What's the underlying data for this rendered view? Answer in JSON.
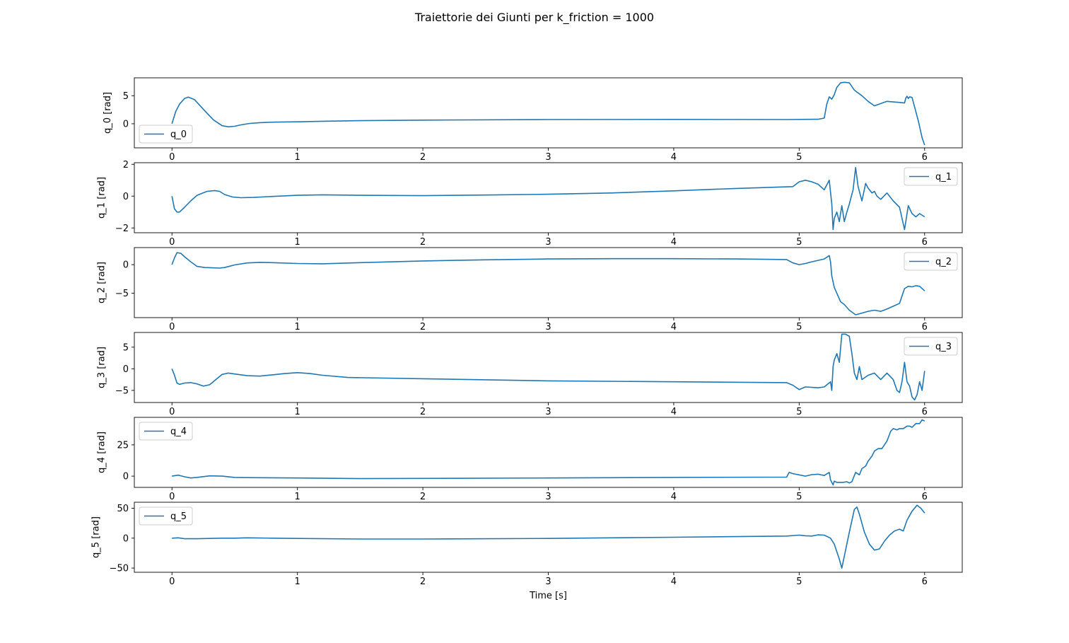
{
  "chart_data": {
    "type": "line",
    "title": "Traiettorie dei Giunti per k_friction = 1000",
    "xlabel": "Time [s]",
    "xlim": [
      -0.3,
      6.3
    ],
    "xticks": [
      0,
      1,
      2,
      3,
      4,
      5,
      6
    ],
    "line_color": "#1f77b4",
    "subplots": [
      {
        "name": "q_0",
        "ylabel": "q_0 [rad]",
        "ylim": [
          -4.3,
          8.2
        ],
        "yticks": [
          0,
          5
        ],
        "legend": "lower-left",
        "x": [
          0,
          0.03,
          0.06,
          0.1,
          0.13,
          0.18,
          0.25,
          0.33,
          0.4,
          0.45,
          0.5,
          0.55,
          0.62,
          0.7,
          0.8,
          0.9,
          1.0,
          1.2,
          1.5,
          2.0,
          3.0,
          4.0,
          4.9,
          5.15,
          5.2,
          5.22,
          5.24,
          5.26,
          5.28,
          5.3,
          5.33,
          5.36,
          5.4,
          5.44,
          5.47,
          5.5,
          5.55,
          5.6,
          5.65,
          5.7,
          5.75,
          5.8,
          5.84,
          5.85,
          5.86,
          5.87,
          5.88,
          5.9,
          5.92,
          5.95,
          5.98,
          6.0
        ],
        "y": [
          0,
          2.2,
          3.5,
          4.5,
          4.75,
          4.3,
          2.6,
          0.7,
          -0.35,
          -0.55,
          -0.45,
          -0.2,
          0.05,
          0.2,
          0.28,
          0.32,
          0.35,
          0.45,
          0.55,
          0.65,
          0.75,
          0.78,
          0.75,
          0.8,
          1.0,
          3.5,
          4.8,
          4.4,
          5.2,
          6.5,
          7.3,
          7.4,
          7.3,
          6.0,
          5.5,
          5.0,
          4.0,
          3.2,
          3.6,
          4.0,
          3.9,
          3.8,
          3.7,
          4.6,
          4.9,
          4.5,
          4.8,
          4.7,
          3.0,
          0.5,
          -2.5,
          -3.8
        ]
      },
      {
        "name": "q_1",
        "ylabel": "q_1 [rad]",
        "ylim": [
          -2.3,
          2.1
        ],
        "yticks": [
          -2,
          0,
          2
        ],
        "legend": "upper-right",
        "x": [
          0,
          0.02,
          0.04,
          0.06,
          0.1,
          0.15,
          0.2,
          0.28,
          0.34,
          0.38,
          0.42,
          0.48,
          0.55,
          0.65,
          0.8,
          1.0,
          1.2,
          1.5,
          2.0,
          2.5,
          3.0,
          3.5,
          4.0,
          4.5,
          4.95,
          5.0,
          5.05,
          5.1,
          5.15,
          5.2,
          5.24,
          5.26,
          5.27,
          5.28,
          5.3,
          5.32,
          5.34,
          5.36,
          5.38,
          5.4,
          5.43,
          5.45,
          5.47,
          5.5,
          5.53,
          5.55,
          5.58,
          5.6,
          5.62,
          5.65,
          5.7,
          5.75,
          5.8,
          5.84,
          5.87,
          5.9,
          5.93,
          5.96,
          6.0
        ],
        "y": [
          0,
          -0.8,
          -1.0,
          -1.0,
          -0.7,
          -0.3,
          0.05,
          0.3,
          0.35,
          0.3,
          0.1,
          -0.05,
          -0.1,
          -0.08,
          -0.02,
          0.05,
          0.08,
          0.05,
          0.03,
          0.07,
          0.12,
          0.2,
          0.33,
          0.48,
          0.6,
          0.9,
          1.0,
          0.9,
          0.75,
          0.4,
          1.0,
          -0.5,
          -2.1,
          -1.4,
          -1.0,
          -1.6,
          -0.6,
          -1.6,
          -1.0,
          -0.5,
          0.4,
          1.8,
          0.6,
          -0.3,
          0.8,
          0.5,
          0.2,
          0.3,
          0.0,
          -0.2,
          0.2,
          -0.3,
          -0.7,
          -2.1,
          -0.6,
          -1.1,
          -1.3,
          -1.1,
          -1.3
        ]
      },
      {
        "name": "q_2",
        "ylabel": "q_2 [rad]",
        "ylim": [
          -9.3,
          3.0
        ],
        "yticks": [
          -5,
          0
        ],
        "legend": "upper-right",
        "x": [
          0,
          0.02,
          0.04,
          0.07,
          0.1,
          0.15,
          0.2,
          0.26,
          0.32,
          0.38,
          0.42,
          0.5,
          0.6,
          0.7,
          0.8,
          1.0,
          1.2,
          1.5,
          2.0,
          2.5,
          3.0,
          3.5,
          4.0,
          4.5,
          4.9,
          4.95,
          5.0,
          5.05,
          5.1,
          5.2,
          5.24,
          5.25,
          5.26,
          5.28,
          5.3,
          5.33,
          5.36,
          5.4,
          5.45,
          5.5,
          5.55,
          5.6,
          5.65,
          5.7,
          5.75,
          5.8,
          5.82,
          5.84,
          5.87,
          5.9,
          5.93,
          5.96,
          6.0
        ],
        "y": [
          0,
          1.2,
          2.1,
          2.0,
          1.4,
          0.5,
          -0.3,
          -0.5,
          -0.55,
          -0.6,
          -0.5,
          -0.05,
          0.3,
          0.4,
          0.35,
          0.2,
          0.15,
          0.35,
          0.65,
          0.85,
          1.0,
          1.05,
          1.05,
          1.0,
          0.9,
          0.3,
          0.0,
          0.2,
          0.5,
          1.0,
          1.6,
          0.5,
          -2.0,
          -4.0,
          -5.0,
          -6.5,
          -7.0,
          -8.0,
          -8.8,
          -8.5,
          -8.2,
          -8.0,
          -8.2,
          -7.8,
          -7.3,
          -6.8,
          -5.5,
          -4.2,
          -3.8,
          -3.9,
          -3.7,
          -3.8,
          -4.6
        ]
      },
      {
        "name": "q_3",
        "ylabel": "q_3 [rad]",
        "ylim": [
          -7.8,
          8.4
        ],
        "yticks": [
          -5,
          0,
          5
        ],
        "legend": "upper-right",
        "x": [
          0,
          0.02,
          0.04,
          0.06,
          0.1,
          0.15,
          0.2,
          0.25,
          0.3,
          0.35,
          0.4,
          0.45,
          0.5,
          0.6,
          0.7,
          0.8,
          0.9,
          1.0,
          1.1,
          1.2,
          1.4,
          2.0,
          3.0,
          4.0,
          4.9,
          4.95,
          5.0,
          5.05,
          5.1,
          5.15,
          5.2,
          5.25,
          5.26,
          5.27,
          5.28,
          5.3,
          5.32,
          5.34,
          5.37,
          5.4,
          5.42,
          5.44,
          5.46,
          5.48,
          5.5,
          5.55,
          5.6,
          5.65,
          5.7,
          5.75,
          5.78,
          5.8,
          5.82,
          5.84,
          5.86,
          5.88,
          5.9,
          5.92,
          5.94,
          5.96,
          5.98,
          6.0
        ],
        "y": [
          0,
          -1.5,
          -3.3,
          -3.6,
          -3.3,
          -3.2,
          -3.5,
          -4.0,
          -3.7,
          -2.5,
          -1.3,
          -1.0,
          -1.2,
          -1.6,
          -1.7,
          -1.4,
          -1.1,
          -0.9,
          -1.1,
          -1.5,
          -2.0,
          -2.3,
          -2.8,
          -3.0,
          -3.2,
          -3.8,
          -4.8,
          -4.2,
          -4.3,
          -4.4,
          -4.2,
          -3.0,
          -5.0,
          0.5,
          2.0,
          3.5,
          1.5,
          8.0,
          8.0,
          7.5,
          3.5,
          -1.0,
          -2.5,
          0.5,
          -2.5,
          -1.5,
          -1.0,
          -2.5,
          -1.0,
          -2.5,
          -5.0,
          -5.5,
          -3.0,
          1.5,
          -3.0,
          -4.0,
          -6.5,
          -7.2,
          -6.0,
          -3.0,
          -5.0,
          -0.5
        ]
      },
      {
        "name": "q_4",
        "ylabel": "q_4 [rad]",
        "ylim": [
          -9.0,
          47.0
        ],
        "yticks": [
          0,
          25
        ],
        "legend": "upper-left",
        "x": [
          0,
          0.05,
          0.1,
          0.15,
          0.2,
          0.3,
          0.4,
          0.5,
          0.6,
          1.0,
          1.5,
          2.0,
          3.0,
          4.0,
          4.9,
          4.92,
          4.95,
          5.0,
          5.05,
          5.1,
          5.15,
          5.2,
          5.24,
          5.25,
          5.27,
          5.28,
          5.3,
          5.32,
          5.35,
          5.38,
          5.4,
          5.42,
          5.45,
          5.48,
          5.5,
          5.53,
          5.55,
          5.58,
          5.6,
          5.63,
          5.66,
          5.7,
          5.73,
          5.75,
          5.78,
          5.8,
          5.83,
          5.86,
          5.88,
          5.9,
          5.93,
          5.96,
          5.98,
          6.0
        ],
        "y": [
          0,
          0.8,
          -0.5,
          -1.5,
          -1.0,
          0.2,
          0.0,
          -1.0,
          -1.2,
          -1.5,
          -2.0,
          -1.8,
          -1.5,
          -1.0,
          -0.8,
          3.0,
          2.0,
          1.0,
          0.0,
          1.2,
          1.5,
          0.5,
          3.0,
          -3.0,
          -7.0,
          -4.0,
          -5.0,
          -5.0,
          -5.0,
          -4.5,
          -5.5,
          -4.5,
          3.0,
          1.0,
          6.0,
          8.0,
          12.0,
          16.0,
          20.0,
          22.0,
          22.0,
          28.0,
          36.0,
          38.0,
          37.0,
          38.0,
          38.0,
          40.0,
          40.0,
          39.0,
          42.0,
          42.0,
          45.0,
          44.0
        ]
      },
      {
        "name": "q_5",
        "ylabel": "q_5 [rad]",
        "ylim": [
          -57.0,
          60.0
        ],
        "yticks": [
          -50,
          0,
          50
        ],
        "legend": "upper-left",
        "x": [
          0,
          0.05,
          0.1,
          0.2,
          0.3,
          0.4,
          0.5,
          0.6,
          0.8,
          1.0,
          1.5,
          2.0,
          3.0,
          4.0,
          4.9,
          5.0,
          5.05,
          5.1,
          5.15,
          5.2,
          5.25,
          5.28,
          5.32,
          5.34,
          5.37,
          5.4,
          5.44,
          5.46,
          5.48,
          5.52,
          5.56,
          5.6,
          5.64,
          5.68,
          5.72,
          5.76,
          5.8,
          5.83,
          5.86,
          5.9,
          5.94,
          5.97,
          6.0
        ],
        "y": [
          0,
          0.5,
          -1.0,
          -1.0,
          -0.5,
          0.0,
          0.0,
          0.5,
          0.0,
          -0.5,
          -1.5,
          -1.5,
          -0.5,
          1.5,
          3.5,
          5.0,
          4.0,
          3.5,
          5.5,
          5.0,
          0.0,
          -10.0,
          -35.0,
          -50.0,
          -20.0,
          10.0,
          48.0,
          52.0,
          40.0,
          10.0,
          -10.0,
          -20.0,
          -18.0,
          -5.0,
          5.0,
          12.0,
          15.0,
          12.0,
          30.0,
          45.0,
          55.0,
          50.0,
          42.0
        ]
      }
    ]
  }
}
